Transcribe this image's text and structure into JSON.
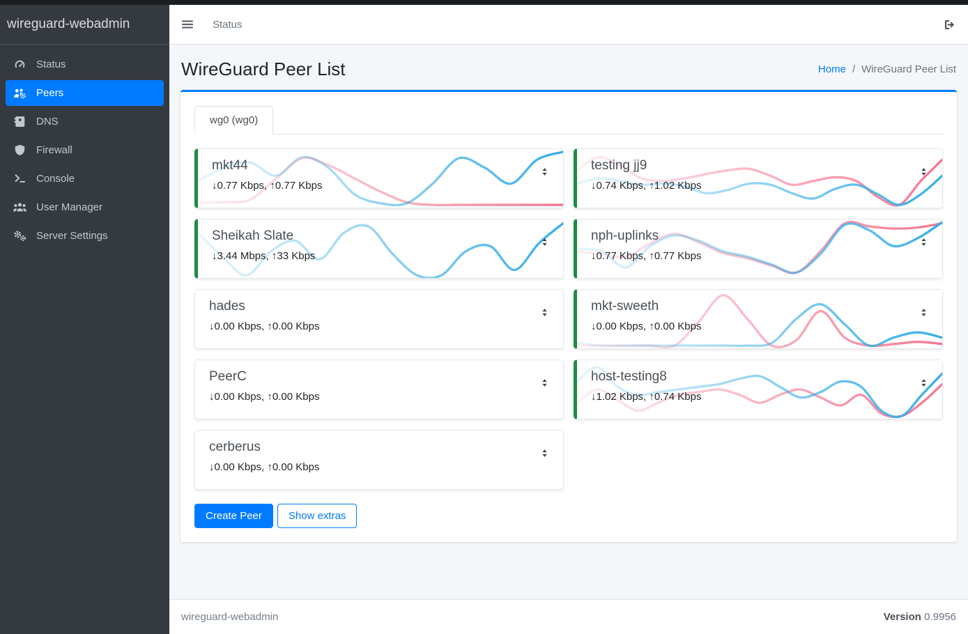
{
  "window": {
    "edge_color": "#1b1e21"
  },
  "sidebar": {
    "brand": "wireguard-webadmin",
    "items": [
      {
        "label": "Status",
        "icon": "gauge-icon",
        "active": false
      },
      {
        "label": "Peers",
        "icon": "users-gear-icon",
        "active": true
      },
      {
        "label": "DNS",
        "icon": "address-book-icon",
        "active": false
      },
      {
        "label": "Firewall",
        "icon": "shield-icon",
        "active": false
      },
      {
        "label": "Console",
        "icon": "terminal-icon",
        "active": false
      },
      {
        "label": "User Manager",
        "icon": "users-icon",
        "active": false
      },
      {
        "label": "Server Settings",
        "icon": "gears-icon",
        "active": false
      }
    ]
  },
  "navbar": {
    "menu_icon": "hamburger-icon",
    "link": "Status",
    "logout_icon": "sign-out-icon"
  },
  "page": {
    "title": "WireGuard Peer List",
    "breadcrumb": {
      "home": "Home",
      "separator": "/",
      "current": "WireGuard Peer List"
    }
  },
  "tabs": [
    {
      "label": "wg0 (wg0)",
      "active": true
    }
  ],
  "icons": {
    "arrow_down": "↓",
    "arrow_up": "↑",
    "sort": "sort-icon"
  },
  "colors": {
    "accent": "#007bff",
    "connected_border": "#1f8a44",
    "spark_rx": "#36aee8",
    "spark_tx": "#f4768f",
    "sidebar_bg": "#343a40",
    "content_bg": "#f4f6f9"
  },
  "peers": {
    "columns": [
      [
        {
          "name": "mkt44",
          "down": "0.77 Kbps",
          "up": "0.77 Kbps",
          "connected": true,
          "sparkline": {
            "rx": [
              0.55,
              0.3,
              0.2,
              0.45,
              0.1,
              0.3,
              0.8,
              0.97,
              0.97,
              0.6,
              0.12,
              0.3,
              0.6,
              0.15,
              0.0
            ],
            "tx": [
              0.95,
              0.95,
              0.9,
              0.5,
              0.12,
              0.25,
              0.5,
              0.75,
              0.95,
              1,
              1,
              1,
              1,
              1,
              1
            ]
          }
        },
        {
          "name": "Sheikah Slate",
          "down": "3.44 Mbps",
          "up": "33 Kbps",
          "connected": true,
          "sparkline": {
            "rx": [
              0.2,
              0.65,
              1.0,
              0.55,
              0.35,
              0.7,
              0.2,
              0.08,
              0.6,
              1.0,
              1.0,
              0.55,
              0.45,
              0.9,
              0.4,
              0.02
            ],
            "tx": [
              1,
              1,
              1,
              1,
              1,
              1,
              1,
              1,
              1,
              1,
              1,
              1,
              1,
              1,
              1,
              1
            ]
          }
        },
        {
          "name": "hades",
          "down": "0.00 Kbps",
          "up": "0.00 Kbps",
          "connected": false,
          "sparkline": {
            "rx": [
              1,
              1,
              1,
              1,
              1,
              1,
              1,
              1,
              1,
              1,
              1,
              1,
              1,
              1,
              1,
              1
            ],
            "tx": [
              1,
              1,
              1,
              1,
              1,
              1,
              1,
              1,
              1,
              1,
              1,
              1,
              1,
              1,
              1,
              1
            ]
          }
        },
        {
          "name": "PeerC",
          "down": "0.00 Kbps",
          "up": "0.00 Kbps",
          "connected": false,
          "sparkline": {
            "rx": [
              1,
              1,
              1,
              1,
              1,
              1,
              1,
              1,
              1,
              1,
              1,
              1,
              1,
              1,
              1,
              1
            ],
            "tx": [
              1,
              1,
              1,
              1,
              1,
              1,
              1,
              1,
              1,
              1,
              1,
              1,
              1,
              1,
              1,
              1
            ]
          }
        },
        {
          "name": "cerberus",
          "down": "0.00 Kbps",
          "up": "0.00 Kbps",
          "connected": false,
          "sparkline": {
            "rx": [
              1,
              1,
              1,
              1,
              1,
              1,
              1,
              1,
              1,
              1,
              1,
              1,
              1,
              1,
              1,
              1
            ],
            "tx": [
              1,
              1,
              1,
              1,
              1,
              1,
              1,
              1,
              1,
              1,
              1,
              1,
              1,
              1,
              1,
              1
            ]
          }
        }
      ],
      [
        {
          "name": "testing jj9",
          "down": "0.74 Kbps",
          "up": "1.02 Kbps",
          "connected": true,
          "sparkline": {
            "rx": [
              0.6,
              0.5,
              0.55,
              0.62,
              0.6,
              0.65,
              0.78,
              0.72,
              0.6,
              0.62,
              0.78,
              0.88,
              0.7,
              0.62,
              0.8,
              1.0,
              0.8,
              0.45
            ],
            "tx": [
              0.35,
              0.1,
              0.25,
              0.5,
              0.55,
              0.5,
              0.42,
              0.35,
              0.32,
              0.45,
              0.62,
              0.55,
              0.48,
              0.55,
              0.85,
              1.0,
              0.55,
              0.15
            ]
          }
        },
        {
          "name": "nph-uplinks",
          "down": "0.77 Kbps",
          "up": "0.77 Kbps",
          "connected": true,
          "sparkline": {
            "rx": [
              0.5,
              0.55,
              0.85,
              0.45,
              0.25,
              0.35,
              0.55,
              0.65,
              0.8,
              0.95,
              0.6,
              0.05,
              0.15,
              0.45,
              0.3,
              0.0
            ],
            "tx": [
              0.55,
              0.6,
              0.65,
              0.4,
              0.22,
              0.38,
              0.58,
              0.68,
              0.82,
              0.95,
              0.55,
              0.02,
              0.08,
              0.12,
              0.1,
              0.02
            ]
          }
        },
        {
          "name": "mkt-sweeth",
          "down": "0.00 Kbps",
          "up": "0.00 Kbps",
          "connected": true,
          "sparkline": {
            "rx": [
              0.95,
              1,
              1,
              1,
              1,
              1,
              1,
              1,
              0.95,
              0.5,
              0.22,
              0.6,
              1,
              0.85,
              0.75,
              0.85
            ],
            "tx": [
              1,
              1,
              1,
              1,
              1,
              0.55,
              0.05,
              0.5,
              1,
              0.9,
              0.35,
              0.85,
              1,
              0.97,
              0.93,
              0.97
            ]
          }
        },
        {
          "name": "host-testing8",
          "down": "1.02 Kbps",
          "up": "0.74 Kbps",
          "connected": true,
          "sparkline": {
            "rx": [
              0.35,
              0.08,
              0.45,
              0.6,
              0.55,
              0.5,
              0.45,
              0.4,
              0.3,
              0.25,
              0.45,
              0.65,
              0.55,
              0.35,
              0.45,
              0.9,
              1.0,
              0.6,
              0.2
            ],
            "tx": [
              0.75,
              0.5,
              0.7,
              0.9,
              0.75,
              0.6,
              0.55,
              0.5,
              0.6,
              0.75,
              0.6,
              0.5,
              0.65,
              0.8,
              0.6,
              0.95,
              1.0,
              0.75,
              0.4
            ]
          }
        }
      ]
    ]
  },
  "actions": {
    "create": "Create Peer",
    "extras": "Show extras"
  },
  "footer": {
    "app": "wireguard-webadmin",
    "version_label": "Version",
    "version": "0.9956"
  }
}
